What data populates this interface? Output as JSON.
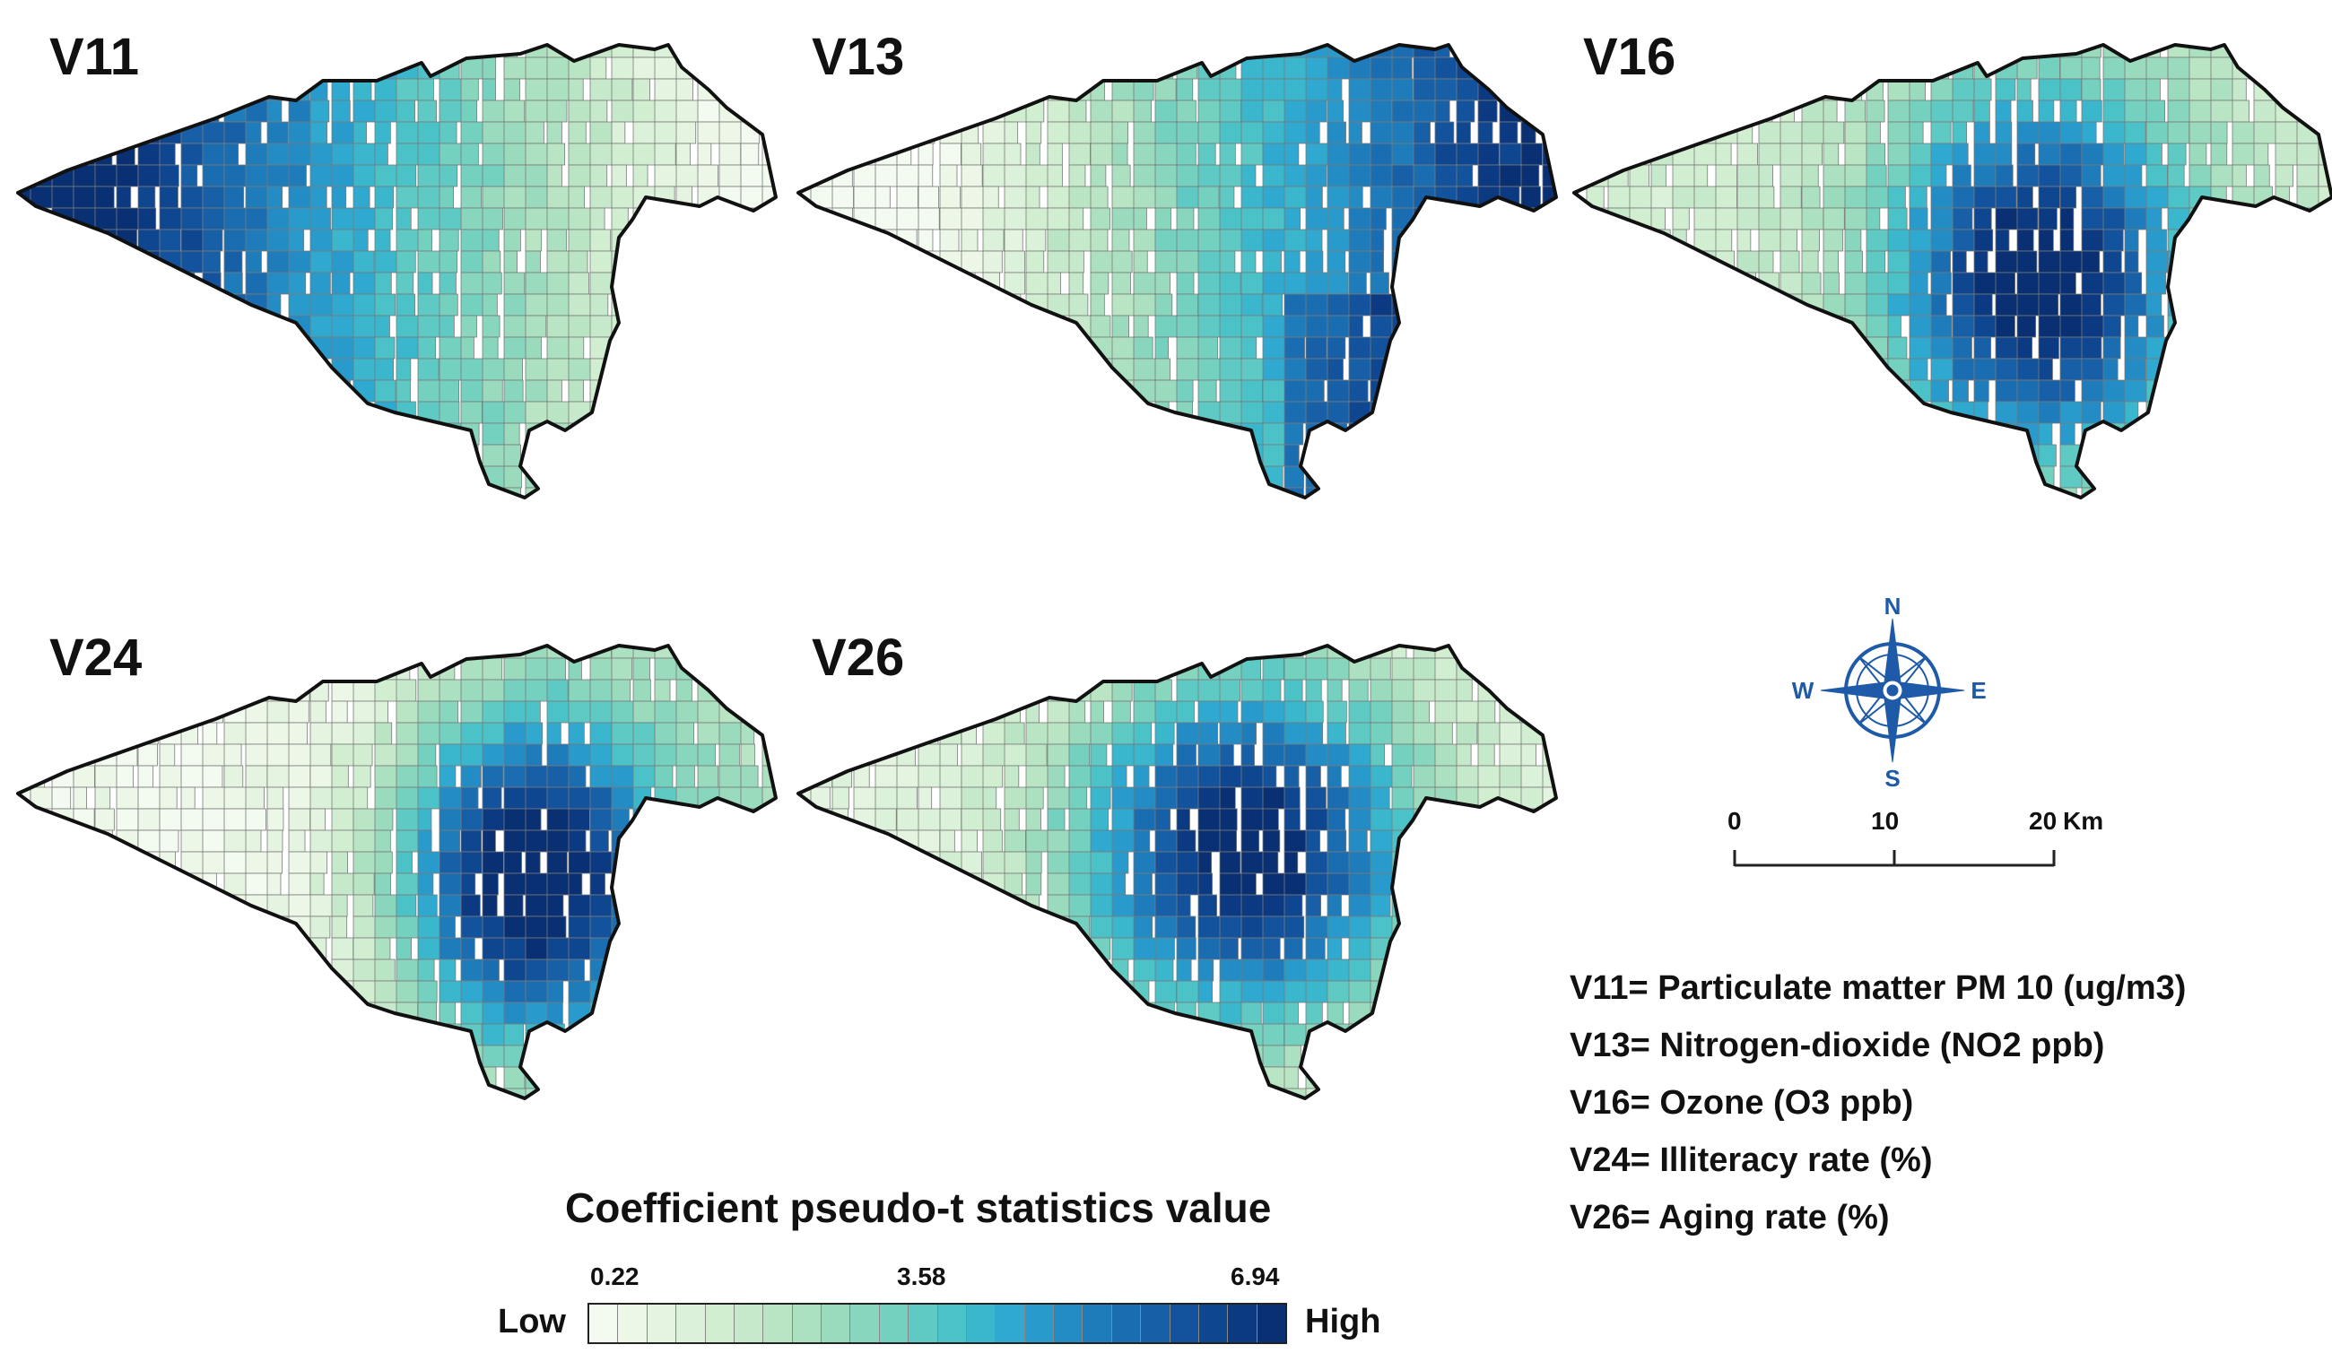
{
  "maps": [
    {
      "id": "V11",
      "title": "V11",
      "pattern": "west-east-gradient"
    },
    {
      "id": "V13",
      "title": "V13",
      "pattern": "east-high"
    },
    {
      "id": "V16",
      "title": "V16",
      "pattern": "center-south-high"
    },
    {
      "id": "V24",
      "title": "V24",
      "pattern": "southeast-center-high"
    },
    {
      "id": "V26",
      "title": "V26",
      "pattern": "center-high"
    }
  ],
  "legend": {
    "title": "Coefficient pseudo-t statistics value",
    "low_label": "Low",
    "high_label": "High",
    "ticks": [
      "0.22",
      "3.58",
      "6.94"
    ],
    "min_value": 0.22,
    "mid_value": 3.58,
    "max_value": 6.94,
    "colors": [
      "#f3faef",
      "#ecf7e8",
      "#e4f4e0",
      "#dbf1d9",
      "#d2eed1",
      "#c6e9cb",
      "#b9e5c4",
      "#abe0c0",
      "#9adbbe",
      "#88d6bd",
      "#74d0bf",
      "#5fc9c3",
      "#4bc1c8",
      "#3ab6cd",
      "#2fa9cf",
      "#289bcc",
      "#238cc5",
      "#1f7cbb",
      "#1b6db1",
      "#175fa7",
      "#13529c",
      "#0f4690",
      "#0b3a82",
      "#083073"
    ]
  },
  "compass": {
    "n": "N",
    "s": "S",
    "e": "E",
    "w": "W",
    "color": "#1e5aa8"
  },
  "scalebar": {
    "labels": [
      "0",
      "10",
      "20"
    ],
    "unit": "Km"
  },
  "variables": [
    "V11= Particulate matter PM 10 (ug/m3)",
    "V13= Nitrogen-dioxide (NO2 ppb)",
    "V16= Ozone (O3 ppb)",
    "V24= Illiteracy rate (%)",
    "V26= Aging rate (%)"
  ]
}
